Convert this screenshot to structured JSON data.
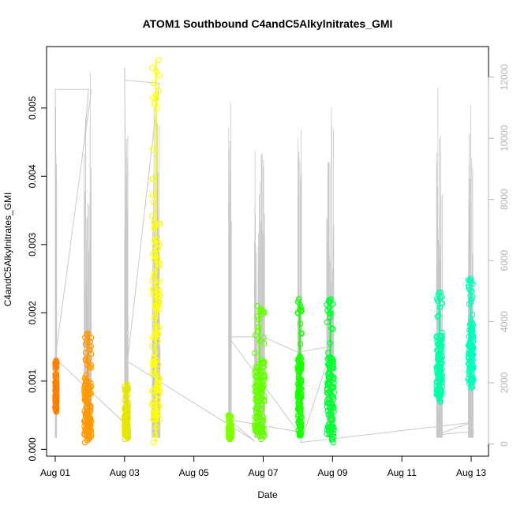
{
  "chart_data": {
    "type": "scatter",
    "title": "ATOM1 Southbound C4andC5Alkylnitrates_GMI",
    "xlabel": "Date",
    "ylabel": "C4andC5Alkylnitrates_GMI",
    "x_tick_labels": [
      "Aug 01",
      "Aug 03",
      "Aug 05",
      "Aug 07",
      "Aug 09",
      "Aug 11",
      "Aug 13"
    ],
    "y_tick_labels": [
      "0.000",
      "0.001",
      "0.002",
      "0.003",
      "0.004",
      "0.005"
    ],
    "y2_tick_labels": [
      "0",
      "2000",
      "4000",
      "6000",
      "8000",
      "10000",
      "12000"
    ],
    "xlim": [
      "2016-07-31T18:00",
      "2016-08-13T12:00"
    ],
    "ylim": [
      -0.0001,
      0.0059
    ],
    "y2lim": [
      -400,
      13000
    ],
    "secondary_axis": "altitude trace, gray line, right axis",
    "x_ticks": [
      "2016-08-01",
      "2016-08-03",
      "2016-08-05",
      "2016-08-07",
      "2016-08-09",
      "2016-08-11",
      "2016-08-13"
    ],
    "y_ticks": [
      0,
      0.001,
      0.002,
      0.003,
      0.004,
      0.005
    ],
    "y2_ticks": [
      0,
      2000,
      4000,
      6000,
      8000,
      10000,
      12000
    ],
    "flights": [
      {
        "start": "2016-08-01T00:00",
        "end": "2016-08-01T01:00",
        "ymin": 0.00055,
        "ymax": 0.0013,
        "color": "#ff8000"
      },
      {
        "start": "2016-08-01T20:00",
        "end": "2016-08-02T01:00",
        "ymin": 0.0001,
        "ymax": 0.0017,
        "color": "#ff9900"
      },
      {
        "start": "2016-08-03T00:00",
        "end": "2016-08-03T02:30",
        "ymin": 0.00015,
        "ymax": 0.00095,
        "color": "#e6e600"
      },
      {
        "start": "2016-08-03T19:00",
        "end": "2016-08-04T00:30",
        "ymin": 0.0001,
        "ymax": 0.0057,
        "color": "#ffff00"
      },
      {
        "start": "2016-08-06T00:00",
        "end": "2016-08-06T02:00",
        "ymin": 0.00015,
        "ymax": 0.0005,
        "color": "#80ff00"
      },
      {
        "start": "2016-08-06T18:00",
        "end": "2016-08-07T01:00",
        "ymin": 0.00015,
        "ymax": 0.0021,
        "color": "#66ff00"
      },
      {
        "start": "2016-08-08T00:00",
        "end": "2016-08-08T02:30",
        "ymin": 0.0002,
        "ymax": 0.0022,
        "color": "#1aff00"
      },
      {
        "start": "2016-08-08T20:00",
        "end": "2016-08-09T01:00",
        "ymin": 0.0001,
        "ymax": 0.0022,
        "color": "#00ff33"
      },
      {
        "start": "2016-08-12T00:00",
        "end": "2016-08-12T04:00",
        "ymin": 0.0007,
        "ymax": 0.0023,
        "color": "#00ffaa"
      },
      {
        "start": "2016-08-12T22:00",
        "end": "2016-08-13T01:30",
        "ymin": 0.0009,
        "ymax": 0.0025,
        "color": "#00ffbb"
      }
    ],
    "altitude": [
      {
        "t": "2016-08-01T00:00",
        "alt": 4500
      },
      {
        "t": "2016-08-01T00:05",
        "alt": 11600
      },
      {
        "t": "2016-08-01T23:00",
        "alt": 11600
      },
      {
        "t": "2016-08-01T20:00",
        "alt": 9800
      },
      {
        "t": "2016-08-02T01:00",
        "alt": 11600
      },
      {
        "t": "2016-08-01T00:00",
        "alt": 2800
      },
      {
        "t": "2016-08-03T02:00",
        "alt": 600
      },
      {
        "t": "2016-08-03T00:00",
        "alt": 12300
      },
      {
        "t": "2016-08-03T00:10",
        "alt": 11900
      },
      {
        "t": "2016-08-04T00:00",
        "alt": 11800
      },
      {
        "t": "2016-08-03T02:00",
        "alt": 2700
      },
      {
        "t": "2016-08-06T18:00",
        "alt": 100
      },
      {
        "t": "2016-08-06T00:00",
        "alt": 800
      },
      {
        "t": "2016-08-08T00:00",
        "alt": 400
      },
      {
        "t": "2016-08-06T00:00",
        "alt": 3500
      },
      {
        "t": "2016-08-07T00:00",
        "alt": 3500
      },
      {
        "t": "2016-08-08T00:00",
        "alt": 3000
      },
      {
        "t": "2016-08-09T00:00",
        "alt": 3200
      },
      {
        "t": "2016-08-08T02:00",
        "alt": 50
      },
      {
        "t": "2016-08-13T00:00",
        "alt": 700
      },
      {
        "t": "2016-08-12T00:00",
        "alt": 300
      },
      {
        "t": "2016-08-13T00:00",
        "alt": 400
      }
    ]
  }
}
